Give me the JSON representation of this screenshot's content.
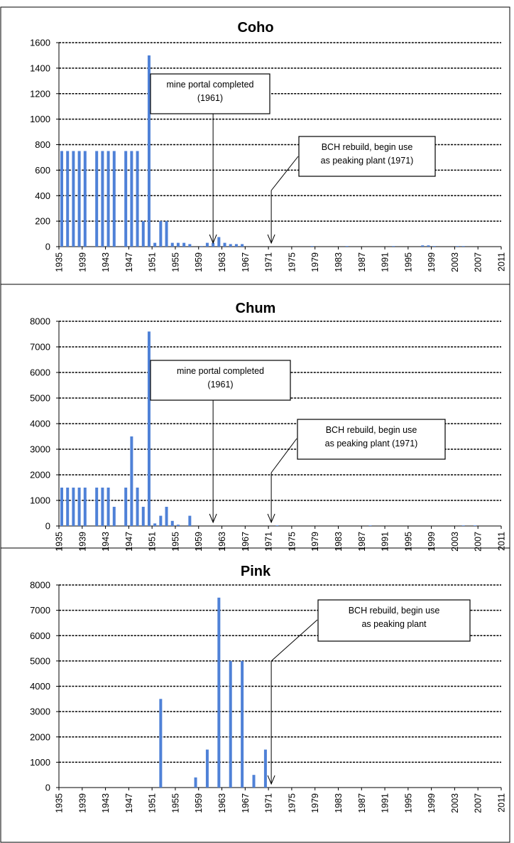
{
  "colors": {
    "bar": "#4f81d7",
    "grid": "#000000",
    "frame": "#000000",
    "box_border": "#000000"
  },
  "x_tick_labels": [
    "1935",
    "1939",
    "1943",
    "1947",
    "1951",
    "1955",
    "1959",
    "1963",
    "1967",
    "1971",
    "1975",
    "1979",
    "1983",
    "1987",
    "1991",
    "1995",
    "1999",
    "2003",
    "2007",
    "2011"
  ],
  "chart_data": [
    {
      "type": "bar",
      "title": "Coho",
      "xlim": [
        1935,
        2011
      ],
      "ylim": [
        0,
        1600
      ],
      "yticks": [
        0,
        200,
        400,
        600,
        800,
        1000,
        1200,
        1400,
        1600
      ],
      "grid": "horizontal dashed",
      "series": [
        {
          "x": [
            1935,
            1936,
            1937,
            1938,
            1939,
            1941,
            1942,
            1943,
            1944,
            1946,
            1947,
            1948,
            1949,
            1950,
            1951,
            1952,
            1953,
            1954,
            1955,
            1956,
            1957,
            1959,
            1960,
            1961,
            1962,
            1963,
            1964,
            1965,
            1966,
            1978,
            1984,
            1992,
            1997,
            1998,
            1999,
            2003,
            2004
          ],
          "y": [
            750,
            750,
            750,
            750,
            750,
            750,
            750,
            750,
            750,
            750,
            750,
            750,
            200,
            1500,
            30,
            200,
            200,
            30,
            30,
            30,
            20,
            5,
            30,
            30,
            75,
            30,
            20,
            20,
            20,
            5,
            5,
            5,
            10,
            10,
            5,
            5,
            5
          ]
        }
      ],
      "annotations": [
        {
          "text_lines": [
            "mine portal completed",
            "(1961)"
          ],
          "arrow_x": 1961
        },
        {
          "text_lines": [
            "BCH rebuild, begin use",
            "as peaking plant (1971)"
          ],
          "arrow_x": 1971
        }
      ]
    },
    {
      "type": "bar",
      "title": "Chum",
      "xlim": [
        1935,
        2011
      ],
      "ylim": [
        0,
        8000
      ],
      "yticks": [
        0,
        1000,
        2000,
        3000,
        4000,
        5000,
        6000,
        7000,
        8000
      ],
      "grid": "horizontal dashed",
      "series": [
        {
          "x": [
            1935,
            1936,
            1937,
            1938,
            1939,
            1941,
            1942,
            1943,
            1944,
            1946,
            1947,
            1948,
            1949,
            1950,
            1951,
            1952,
            1953,
            1954,
            1955,
            1957,
            1972,
            1988,
            2004,
            2006
          ],
          "y": [
            1500,
            1500,
            1500,
            1500,
            1500,
            1500,
            1500,
            1500,
            750,
            1500,
            3500,
            1500,
            750,
            7600,
            100,
            400,
            750,
            200,
            50,
            400,
            20,
            20,
            20,
            20
          ]
        }
      ],
      "annotations": [
        {
          "text_lines": [
            "mine portal completed",
            "(1961)"
          ],
          "arrow_x": 1961
        },
        {
          "text_lines": [
            "BCH rebuild, begin use",
            "as peaking plant (1971)"
          ],
          "arrow_x": 1971
        }
      ]
    },
    {
      "type": "bar",
      "title": "Pink",
      "xlim": [
        1935,
        2011
      ],
      "ylim": [
        0,
        8000
      ],
      "yticks": [
        0,
        1000,
        2000,
        3000,
        4000,
        5000,
        6000,
        7000,
        8000
      ],
      "grid": "horizontal dashed",
      "series": [
        {
          "x": [
            1952,
            1958,
            1960,
            1962,
            1964,
            1966,
            1968,
            1970
          ],
          "y": [
            3500,
            400,
            1500,
            7500,
            5000,
            5000,
            500,
            1500
          ]
        }
      ],
      "annotations": [
        {
          "text_lines": [
            "BCH rebuild, begin use",
            "as peaking plant"
          ],
          "arrow_x": 1971
        }
      ]
    }
  ]
}
